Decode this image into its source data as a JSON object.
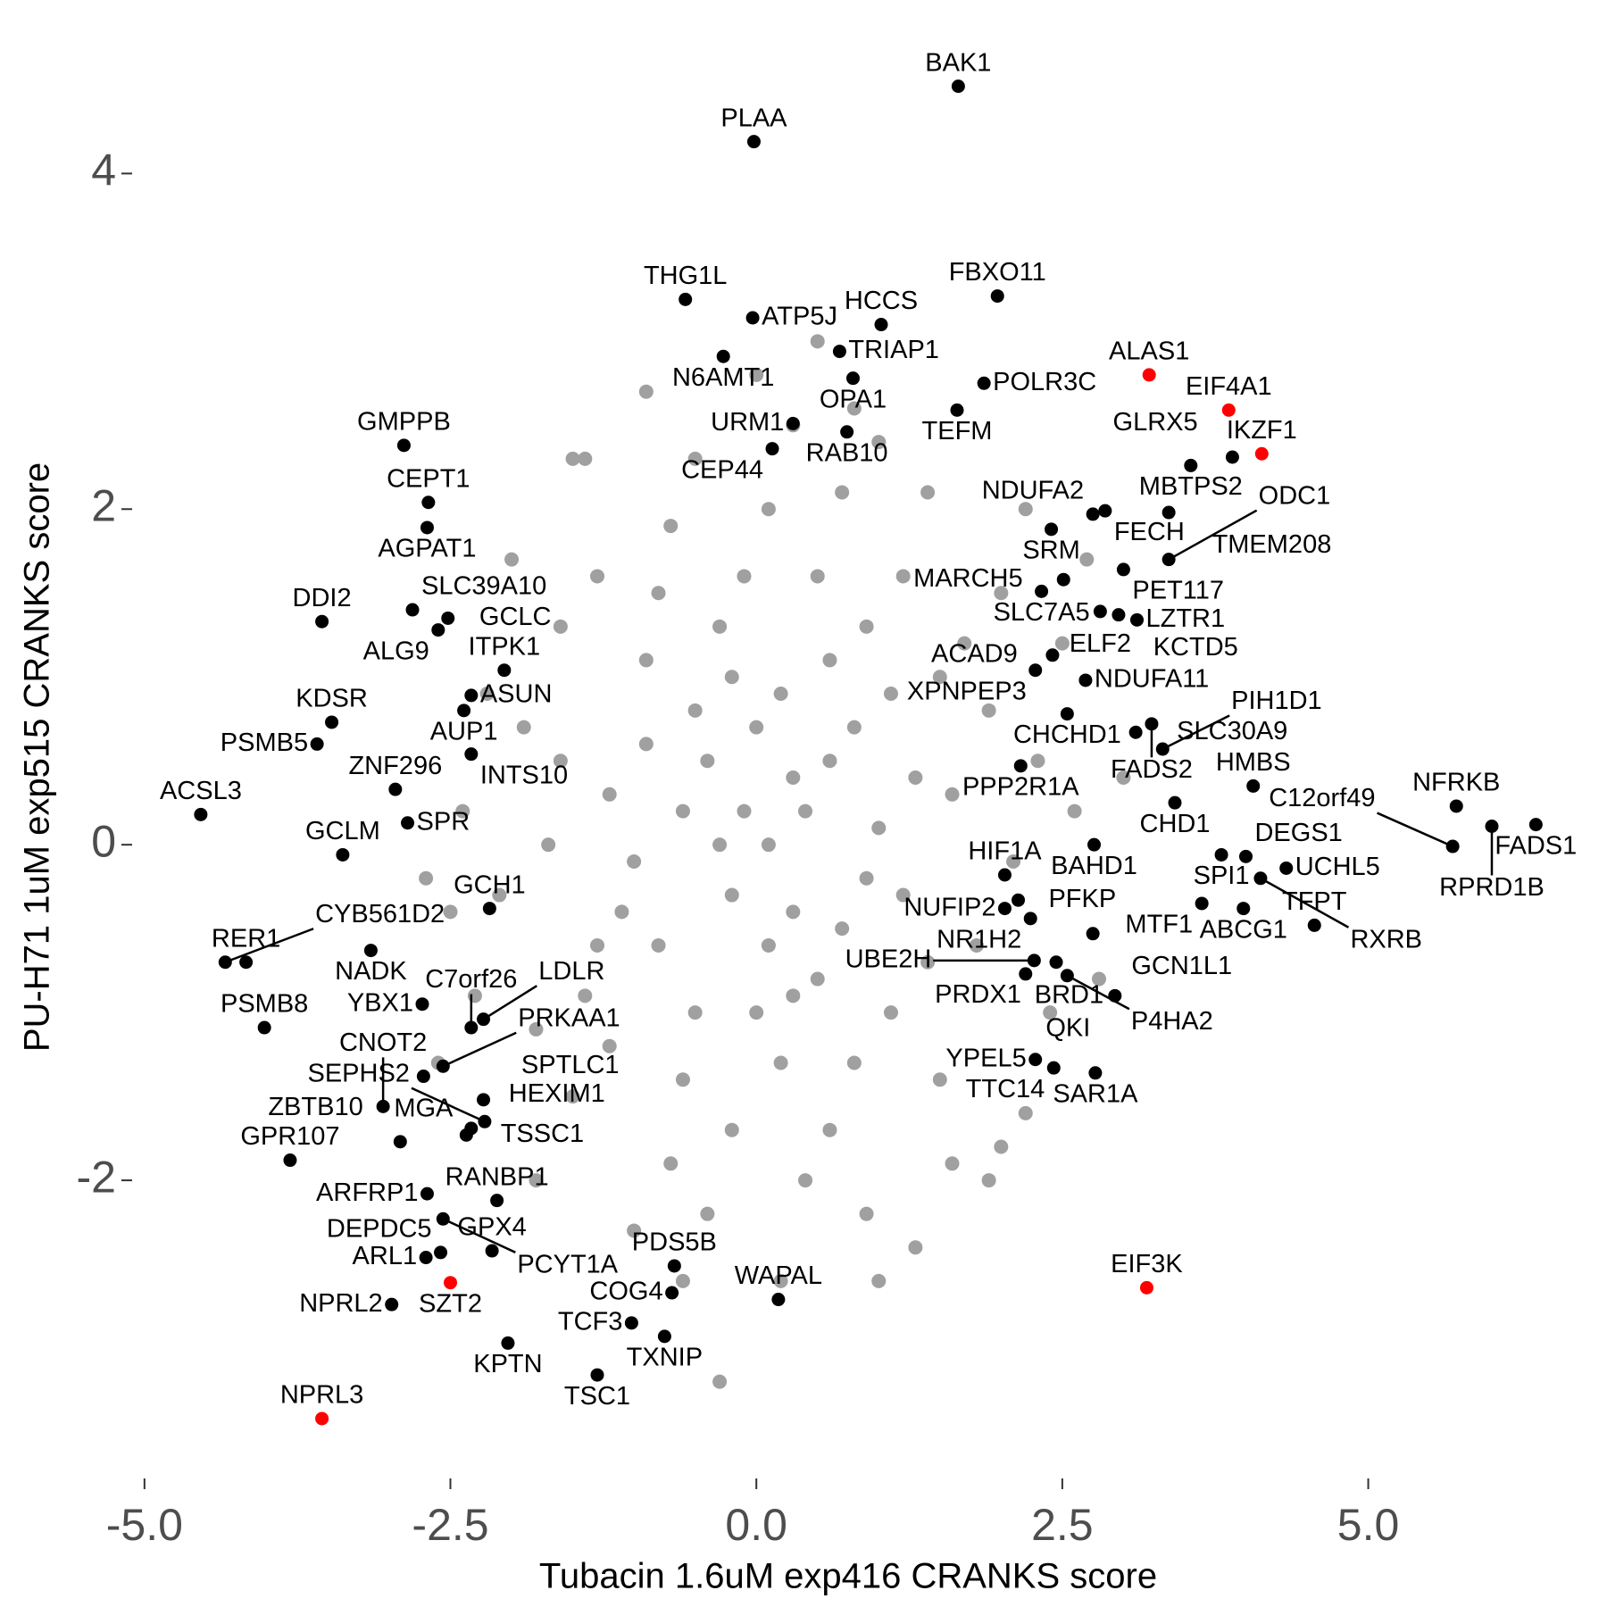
{
  "chart_data": {
    "type": "scatter",
    "xlabel": "Tubacin 1.6uM exp416 CRANKS score",
    "ylabel": "PU-H71 1uM exp515 CRANKS score",
    "xlim": [
      -5.4,
      6.9
    ],
    "ylim": [
      -3.75,
      4.8
    ],
    "xticks": [
      {
        "value": -5,
        "label": "-5.0"
      },
      {
        "value": -2.5,
        "label": "-2.5"
      },
      {
        "value": 0,
        "label": "0.0"
      },
      {
        "value": 2.5,
        "label": "2.5"
      },
      {
        "value": 5,
        "label": "5.0"
      }
    ],
    "yticks": [
      -2,
      0,
      2,
      4
    ],
    "grid": false,
    "series": [
      {
        "color": "#a0a0a0",
        "x": [
          -0.1,
          0.3,
          -0.5,
          0.6,
          -0.8,
          0.9,
          -1.2,
          1.1,
          0.0,
          -0.3,
          0.5,
          -0.9,
          1.4,
          -1.4,
          0.2,
          -0.6,
          0.8,
          1.6,
          -1.7,
          0.1,
          -0.2,
          1.9,
          -1.9,
          0.7,
          -0.7,
          1.2,
          -1.3,
          1.5,
          -1.5,
          0.4,
          -0.4,
          2.1,
          -2.1,
          1.0,
          -1.0,
          0.3,
          -0.2,
          0.5,
          -0.4,
          0.0,
          1.3,
          -1.1,
          0.9,
          -0.8,
          1.8,
          -1.8,
          2.3,
          -2.2,
          0.2,
          -0.1,
          1.7,
          -1.6,
          1.1,
          -1.2,
          0.6,
          -0.7,
          2.0,
          -2.0,
          1.4,
          -1.4,
          0.3,
          -0.5,
          1.6,
          -1.0,
          0.9,
          2.4,
          -2.3,
          2.6,
          -2.4,
          0.8,
          1.0,
          -1.5,
          2.2,
          1.9,
          -0.6,
          0.2,
          1.0,
          -0.3,
          2.0,
          2.5,
          -2.5,
          0.1,
          -0.3,
          0.4,
          0.7,
          -0.6,
          0.1,
          -0.9,
          1.2,
          -1.3,
          0.6,
          -0.2,
          0.3,
          1.5,
          -1.6,
          0.8,
          -0.5,
          2.8,
          3.0,
          2.7,
          -2.7,
          -2.6,
          1.3,
          -1.8,
          0.0,
          -0.9,
          2.2,
          0.5
        ],
        "y": [
          0.2,
          -0.4,
          0.8,
          0.5,
          -0.6,
          -0.2,
          0.3,
          0.9,
          -1.0,
          1.3,
          1.6,
          1.1,
          -0.7,
          -0.9,
          0.9,
          -1.4,
          -1.3,
          0.3,
          0.0,
          2.0,
          -1.7,
          0.8,
          0.7,
          2.1,
          1.9,
          1.6,
          1.6,
          -1.4,
          -1.5,
          -2.0,
          -2.2,
          -0.1,
          -0.3,
          0.1,
          -0.1,
          0.4,
          -0.3,
          -0.8,
          0.5,
          0.7,
          0.4,
          -0.4,
          1.3,
          1.5,
          -0.6,
          -1.1,
          0.5,
          0.9,
          -1.3,
          1.6,
          1.2,
          1.3,
          -1.0,
          -1.2,
          -1.7,
          -1.9,
          1.5,
          1.7,
          2.1,
          2.3,
          2.5,
          2.3,
          -1.9,
          -2.3,
          -2.2,
          -1.0,
          -0.9,
          0.2,
          0.2,
          2.6,
          2.4,
          2.3,
          -1.6,
          -2.0,
          -2.6,
          -2.6,
          -2.6,
          -3.2,
          -1.8,
          1.2,
          -0.4,
          0.0,
          0.0,
          0.2,
          -0.5,
          0.2,
          -0.6,
          0.6,
          -0.3,
          -0.6,
          1.1,
          1.0,
          -0.9,
          1.0,
          0.5,
          0.7,
          -1.0,
          -0.8,
          0.4,
          1.7,
          -0.2,
          -1.3,
          -2.4,
          -2.0,
          2.8,
          2.7,
          2.0,
          3.0
        ]
      },
      {
        "color": "#000000",
        "labels": [
          "BAK1",
          "PLAA",
          "THG1L",
          "ATP5J",
          "HCCS",
          "FBXO11",
          "TRIAP1",
          "N6AMT1",
          "OPA1",
          "POLR3C",
          "URM1",
          "TEFM",
          "MBTPS2",
          "GLRX5",
          "RAB10",
          "CEP44",
          "NDUFA2",
          "FECH",
          "SRM",
          "TMEM208",
          "PET117",
          "ODC1",
          "MARCH5",
          "SLC7A5",
          "ELF2",
          "KCTD5",
          "LZTR1",
          "NDUFA11",
          "ACAD9",
          "XPNPEP3",
          "CHCHD1",
          "SLC30A9",
          "FADS2",
          "PIH1D1",
          "PPP2R1A",
          "HMBS",
          "NFRKB",
          "FADS1",
          "CHD1",
          "DEGS1",
          "SPI1",
          "BAHD1",
          "HIF1A",
          "UCHL5",
          "RPRD1B",
          "C12orf49",
          "PFKP",
          "MTF1",
          "ABCG1",
          "NUFIP2",
          "NR1H2",
          "TFPT",
          "RXRB",
          "GCN1L1",
          "PRDX1",
          "BRD1",
          "UBE2H",
          "P4HA2",
          "QKI",
          "YPEL5",
          "TTC14",
          "SAR1A",
          "WAPAL",
          "PDS5B",
          "COG4",
          "TCF3",
          "TXNIP",
          "TSC1",
          "KPTN",
          "NPRL2",
          "ARL1",
          "GPX4",
          "DEPDC5",
          "RANBP1",
          "ARFRP1",
          "PCYT1A",
          "TSSC1",
          "HEXIM1",
          "SEPHS2",
          "ZBTB10",
          "GPR107",
          "CNOT2",
          "MGA",
          "SPTLC1",
          "PSMB8",
          "PRKAA1",
          "C7orf26",
          "LDLR",
          "RER1",
          "CYB561D2",
          "YBX1",
          "NADK",
          "GCH1",
          "GCLM",
          "SPR",
          "ACSL3",
          "ZNF296",
          "PSMB5",
          "KDSR",
          "AUP1",
          "ASUN",
          "INTS10",
          "ITPK1",
          "DDI2",
          "SLC39A10",
          "ALG9",
          "GCLC",
          "AGPAT1",
          "CEPT1",
          "GMPPB"
        ],
        "x": [
          1.65,
          -0.02,
          -0.58,
          -0.03,
          1.02,
          1.97,
          0.68,
          -0.27,
          0.79,
          1.86,
          0.3,
          1.64,
          3.55,
          3.89,
          0.74,
          0.13,
          2.75,
          2.85,
          2.41,
          3.37,
          3.0,
          3.37,
          2.51,
          2.33,
          2.81,
          2.96,
          3.11,
          2.69,
          2.42,
          2.28,
          2.54,
          3.1,
          3.23,
          3.32,
          2.16,
          4.06,
          5.72,
          6.37,
          3.42,
          4.0,
          3.8,
          2.76,
          2.03,
          4.33,
          6.01,
          5.69,
          2.14,
          3.64,
          3.98,
          2.03,
          2.24,
          4.56,
          4.12,
          2.75,
          2.45,
          2.2,
          2.27,
          2.54,
          2.93,
          2.28,
          2.43,
          2.77,
          0.18,
          -0.67,
          -0.69,
          -1.02,
          -0.75,
          -1.3,
          -2.03,
          -2.98,
          -2.7,
          -2.16,
          -2.58,
          -2.12,
          -2.69,
          -2.56,
          -2.37,
          -2.33,
          -2.22,
          -2.91,
          -3.81,
          -3.05,
          -2.72,
          -2.23,
          -4.02,
          -2.56,
          -2.33,
          -2.23,
          -4.17,
          -4.34,
          -2.73,
          -3.15,
          -2.18,
          -3.38,
          -2.85,
          -4.54,
          -2.95,
          -3.59,
          -3.47,
          -2.39,
          -2.33,
          -2.33,
          -2.06,
          -3.55,
          -2.81,
          -2.6,
          -2.52,
          -2.69,
          -2.68,
          -2.88
        ],
        "y": [
          4.52,
          4.19,
          3.25,
          3.14,
          3.1,
          3.27,
          2.94,
          2.91,
          2.78,
          2.75,
          2.51,
          2.59,
          2.26,
          2.31,
          2.46,
          2.36,
          1.97,
          1.99,
          1.88,
          1.98,
          1.64,
          1.7,
          1.58,
          1.51,
          1.39,
          1.37,
          1.34,
          0.98,
          1.13,
          1.04,
          0.78,
          0.67,
          0.72,
          0.57,
          0.47,
          0.35,
          0.23,
          0.12,
          0.25,
          -0.07,
          -0.06,
          0.0,
          -0.18,
          -0.14,
          0.11,
          -0.01,
          -0.33,
          -0.35,
          -0.38,
          -0.38,
          -0.44,
          -0.48,
          -0.2,
          -0.53,
          -0.7,
          -0.77,
          -0.69,
          -0.78,
          -0.9,
          -1.28,
          -1.33,
          -1.36,
          -2.71,
          -2.51,
          -2.67,
          -2.85,
          -2.93,
          -3.16,
          -2.97,
          -2.74,
          -2.46,
          -2.42,
          -2.43,
          -2.12,
          -2.08,
          -2.23,
          -1.73,
          -1.69,
          -1.65,
          -1.77,
          -1.88,
          -1.56,
          -1.38,
          -1.52,
          -1.09,
          -1.32,
          -1.09,
          -1.04,
          -0.7,
          -0.7,
          -0.95,
          -0.63,
          -0.38,
          -0.06,
          0.13,
          0.18,
          0.33,
          0.6,
          0.73,
          0.8,
          0.89,
          0.54,
          1.04,
          1.33,
          1.4,
          1.28,
          1.35,
          1.89,
          2.04,
          2.38
        ]
      },
      {
        "color": "#ff0000",
        "labels": [
          "ALAS1",
          "EIF4A1",
          "IKZF1",
          "SZT2",
          "NPRL3",
          "EIF3K"
        ],
        "x": [
          3.21,
          3.86,
          4.13,
          -2.5,
          -3.55,
          3.19
        ],
        "y": [
          2.8,
          2.59,
          2.33,
          -2.61,
          -3.42,
          -2.64
        ]
      }
    ]
  }
}
